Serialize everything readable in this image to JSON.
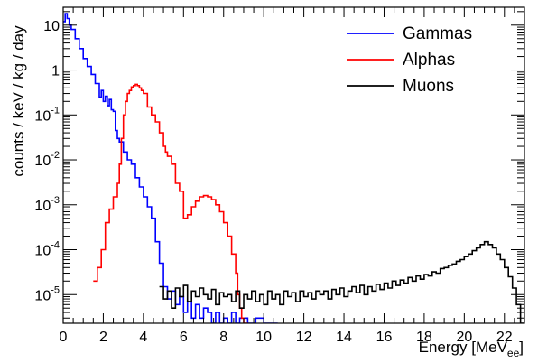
{
  "chart_data": {
    "type": "line",
    "title": "",
    "xlabel": "Energy [MeV",
    "xlabel_subscript": "ee",
    "xlabel_close": "]",
    "ylabel": "counts / keV / kg / day",
    "xlim": [
      0,
      23
    ],
    "ylim": [
      2.3e-06,
      25
    ],
    "y_scale": "log",
    "grid": false,
    "legend_position": "top-right",
    "x_ticks": [
      {
        "value": 0,
        "label": "0"
      },
      {
        "value": 2,
        "label": "2"
      },
      {
        "value": 4,
        "label": "4"
      },
      {
        "value": 6,
        "label": "6"
      },
      {
        "value": 8,
        "label": "8"
      },
      {
        "value": 10,
        "label": "10"
      },
      {
        "value": 12,
        "label": "12"
      },
      {
        "value": 14,
        "label": "14"
      },
      {
        "value": 16,
        "label": "16"
      },
      {
        "value": 18,
        "label": "18"
      },
      {
        "value": 20,
        "label": "20"
      },
      {
        "value": 22,
        "label": "22"
      }
    ],
    "y_ticks": [
      {
        "value": 10,
        "base": "10",
        "exp": ""
      },
      {
        "value": 1,
        "base": "1",
        "exp": ""
      },
      {
        "value": 0.1,
        "base": "10",
        "exp": "-1"
      },
      {
        "value": 0.01,
        "base": "10",
        "exp": "-2"
      },
      {
        "value": 0.001,
        "base": "10",
        "exp": "-3"
      },
      {
        "value": 0.0001,
        "base": "10",
        "exp": "-4"
      },
      {
        "value": 1e-05,
        "base": "10",
        "exp": "-5"
      }
    ],
    "series": [
      {
        "name": "Gammas",
        "color": "#0000ff",
        "x": [
          0.0,
          0.1,
          0.2,
          0.3,
          0.4,
          0.6,
          0.8,
          1.0,
          1.2,
          1.4,
          1.6,
          1.8,
          1.9,
          2.0,
          2.1,
          2.2,
          2.3,
          2.4,
          2.5,
          2.6,
          2.7,
          2.8,
          3.0,
          3.2,
          3.4,
          3.6,
          3.8,
          4.0,
          4.2,
          4.4,
          4.6,
          4.8,
          5.0,
          5.2,
          5.4,
          5.6,
          5.8,
          6.0,
          6.2,
          6.4,
          6.6,
          6.8,
          7.0,
          7.2,
          7.4,
          7.6,
          7.8,
          8.0,
          8.2,
          8.4,
          8.6,
          8.8,
          9.2,
          9.6,
          10.0,
          10.6
        ],
        "y": [
          12,
          18,
          14,
          10,
          8,
          5,
          3,
          1.8,
          1.2,
          0.8,
          0.5,
          0.25,
          0.35,
          0.2,
          0.26,
          0.16,
          0.22,
          0.13,
          0.12,
          0.045,
          0.03,
          0.025,
          0.015,
          0.01,
          0.008,
          0.004,
          0.0025,
          0.0015,
          0.0009,
          0.0005,
          0.00015,
          5e-05,
          1.5e-05,
          8e-06,
          1.2e-05,
          6e-06,
          9e-06,
          4e-06,
          7e-06,
          3e-06,
          6e-06,
          3e-06,
          5e-06,
          4e-06,
          2e-06,
          4e-06,
          2e-06,
          3e-06,
          2e-06,
          4e-06,
          2e-06,
          3e-06,
          2e-06,
          3e-06,
          2e-06,
          2e-06
        ]
      },
      {
        "name": "Alphas",
        "color": "#ff0000",
        "x": [
          1.5,
          1.7,
          1.9,
          2.1,
          2.3,
          2.5,
          2.7,
          2.8,
          2.9,
          3.0,
          3.1,
          3.2,
          3.3,
          3.4,
          3.5,
          3.6,
          3.7,
          3.8,
          3.9,
          4.0,
          4.2,
          4.4,
          4.6,
          4.8,
          5.0,
          5.1,
          5.2,
          5.4,
          5.6,
          5.8,
          6.0,
          6.2,
          6.4,
          6.6,
          6.8,
          7.0,
          7.2,
          7.4,
          7.6,
          7.8,
          8.0,
          8.2,
          8.4,
          8.6,
          8.7,
          8.8,
          8.9,
          9.0
        ],
        "y": [
          2e-05,
          4e-05,
          0.0001,
          0.0004,
          0.0008,
          0.0015,
          0.003,
          0.008,
          0.03,
          0.1,
          0.2,
          0.3,
          0.35,
          0.42,
          0.45,
          0.48,
          0.45,
          0.4,
          0.35,
          0.3,
          0.15,
          0.1,
          0.07,
          0.04,
          0.02,
          0.015,
          0.012,
          0.008,
          0.003,
          0.002,
          0.0005,
          0.0006,
          0.0009,
          0.0012,
          0.0015,
          0.0016,
          0.0015,
          0.0013,
          0.001,
          0.0007,
          0.0004,
          0.0002,
          8e-05,
          3e-05,
          1e-05,
          5e-06,
          3e-06,
          2.3e-06
        ]
      },
      {
        "name": "Muons",
        "color": "#000000",
        "x": [
          4.8,
          5.0,
          5.2,
          5.4,
          5.6,
          5.8,
          6.0,
          6.2,
          6.4,
          6.6,
          6.8,
          7.0,
          7.2,
          7.4,
          7.6,
          7.8,
          8.0,
          8.2,
          8.4,
          8.6,
          8.8,
          9.0,
          9.2,
          9.4,
          9.6,
          9.8,
          10.0,
          10.2,
          10.4,
          10.6,
          10.8,
          11.0,
          11.2,
          11.4,
          11.6,
          11.8,
          12.0,
          12.2,
          12.4,
          12.6,
          12.8,
          13.0,
          13.2,
          13.4,
          13.6,
          13.8,
          14.0,
          14.2,
          14.4,
          14.6,
          14.8,
          15.0,
          15.2,
          15.4,
          15.6,
          15.8,
          16.0,
          16.2,
          16.4,
          16.6,
          16.8,
          17.0,
          17.2,
          17.4,
          17.6,
          17.8,
          18.0,
          18.2,
          18.4,
          18.6,
          18.8,
          19.0,
          19.2,
          19.4,
          19.6,
          19.8,
          20.0,
          20.2,
          20.4,
          20.6,
          20.8,
          21.0,
          21.2,
          21.4,
          21.6,
          21.8,
          22.0,
          22.2,
          22.4,
          22.6,
          22.8
        ],
        "y": [
          1.5e-05,
          8e-06,
          1.2e-05,
          5e-06,
          1.4e-05,
          9e-06,
          1.6e-05,
          7e-06,
          1.2e-05,
          9e-06,
          1.4e-05,
          1e-05,
          8e-06,
          1.3e-05,
          6e-06,
          1.1e-05,
          9e-06,
          1e-05,
          7e-06,
          1.2e-05,
          5e-06,
          1e-05,
          8e-06,
          1.2e-05,
          7e-06,
          1e-05,
          6e-06,
          1.2e-05,
          8e-06,
          1e-05,
          6e-06,
          1.2e-05,
          9e-06,
          1.1e-05,
          7e-06,
          1.2e-05,
          9e-06,
          1.1e-05,
          8e-06,
          1.2e-05,
          1e-05,
          1.2e-05,
          8e-06,
          1.3e-05,
          1e-05,
          1.4e-05,
          9e-06,
          1.2e-05,
          1.5e-05,
          1.1e-05,
          1.6e-05,
          1e-05,
          1.5e-05,
          1.2e-05,
          1.7e-05,
          1.3e-05,
          1.8e-05,
          1.4e-05,
          2e-05,
          1.6e-05,
          2.1e-05,
          1.8e-05,
          2.4e-05,
          2e-05,
          2.6e-05,
          2.2e-05,
          2.8e-05,
          2.6e-05,
          3.2e-05,
          3e-05,
          3.8e-05,
          4e-05,
          4.5e-05,
          4.8e-05,
          5.5e-05,
          6e-05,
          7e-05,
          8e-05,
          9.5e-05,
          0.00011,
          0.00013,
          0.00015,
          0.00013,
          0.00011,
          8e-05,
          6e-05,
          4e-05,
          2.5e-05,
          1.4e-05,
          6e-06,
          2.3e-06
        ]
      }
    ]
  }
}
